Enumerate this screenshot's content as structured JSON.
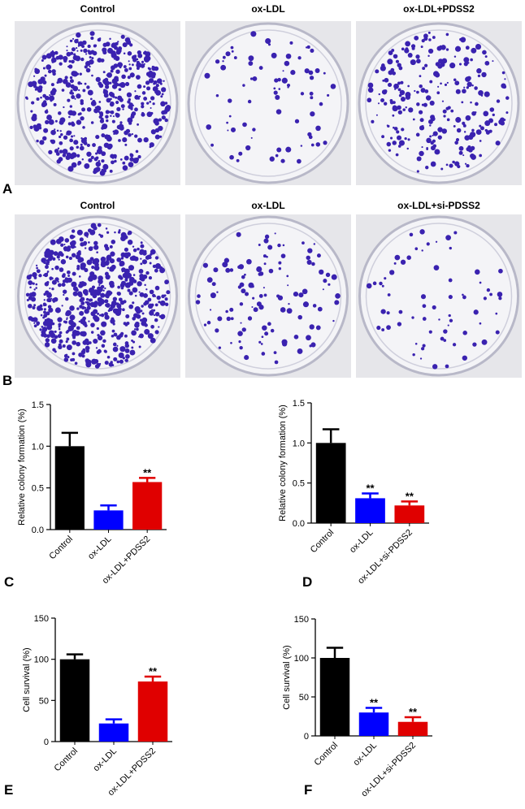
{
  "photo_panels": [
    {
      "panel": "A",
      "titles": [
        "Control",
        "ox-LDL",
        "ox-LDL+PDSS2"
      ]
    },
    {
      "panel": "B",
      "titles": [
        "Control",
        "ox-LDL",
        "ox-LDL+si-PDSS2"
      ]
    }
  ],
  "chart_data": [
    {
      "type": "bar",
      "panel": "C",
      "y_label": "Relative colony formation (%)",
      "categories": [
        "Control",
        "ox-LDL",
        "ox-LDL+PDSS2"
      ],
      "values": [
        1.0,
        0.23,
        0.57
      ],
      "errors": [
        0.16,
        0.06,
        0.05
      ],
      "significance": [
        null,
        null,
        "**"
      ],
      "colors": [
        "#000000",
        "#0000ff",
        "#e00000"
      ],
      "ylim": [
        0,
        1.5
      ],
      "yticks": [
        {
          "value": 0,
          "label": "0.0"
        },
        0.5,
        {
          "value": 1,
          "label": "1.0"
        },
        1.5
      ]
    },
    {
      "type": "bar",
      "panel": "D",
      "y_label": "Relative colony formation (%)",
      "categories": [
        "Control",
        "ox-LDL",
        "ox-LDL+si-PDSS2"
      ],
      "values": [
        1.0,
        0.31,
        0.22
      ],
      "errors": [
        0.17,
        0.06,
        0.05
      ],
      "significance": [
        null,
        "**",
        "**"
      ],
      "colors": [
        "#000000",
        "#0000ff",
        "#e00000"
      ],
      "ylim": [
        0,
        1.5
      ],
      "yticks": [
        {
          "value": 0,
          "label": "0.0"
        },
        0.5,
        {
          "value": 1,
          "label": "1.0"
        },
        1.5
      ]
    },
    {
      "type": "bar",
      "panel": "E",
      "y_label": "Cell survival (%)",
      "categories": [
        "Control",
        "ox-LDL",
        "ox-LDL+PDSS2"
      ],
      "values": [
        100,
        22,
        73
      ],
      "errors": [
        6,
        5,
        6
      ],
      "significance": [
        null,
        null,
        "**"
      ],
      "colors": [
        "#000000",
        "#0000ff",
        "#e00000"
      ],
      "ylim": [
        0,
        150
      ],
      "yticks": [
        0,
        50,
        100,
        150
      ]
    },
    {
      "type": "bar",
      "panel": "F",
      "y_label": "Cell survival (%)",
      "categories": [
        "Control",
        "ox-LDL",
        "ox-LDL+si-PDSS2"
      ],
      "values": [
        100,
        30,
        18
      ],
      "errors": [
        13,
        6,
        6
      ],
      "significance": [
        null,
        "**",
        "**"
      ],
      "colors": [
        "#000000",
        "#0000ff",
        "#e00000"
      ],
      "ylim": [
        0,
        150
      ],
      "yticks": [
        0,
        50,
        100,
        150
      ]
    }
  ]
}
